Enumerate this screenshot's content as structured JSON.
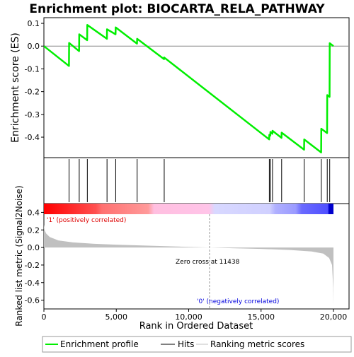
{
  "chart_data": {
    "type": "line",
    "title": "Enrichment plot: BIOCARTA_RELA_PATHWAY",
    "x_range": [
      0,
      20000
    ],
    "x_axis": {
      "label": "Rank in Ordered Dataset",
      "ticks": [
        0,
        5000,
        10000,
        15000,
        20000
      ],
      "tick_labels": [
        "0",
        "5,000",
        "10,000",
        "15,000",
        "20,000"
      ]
    },
    "enrichment_panel": {
      "ylabel": "Enrichment score (ES)",
      "ylim": [
        -0.49,
        0.125
      ],
      "yticks": [
        0.1,
        0.0,
        -0.1,
        -0.2,
        -0.3,
        -0.4
      ],
      "ytick_labels": [
        "0.1",
        "0.0",
        "-0.1",
        "-0.2",
        "-0.3",
        "-0.4"
      ],
      "zero_line": 0.0,
      "line_color": "#00ee00",
      "profile": [
        [
          0,
          0.0
        ],
        [
          1730,
          -0.087
        ],
        [
          1740,
          0.014
        ],
        [
          2430,
          -0.022
        ],
        [
          2440,
          0.052
        ],
        [
          2990,
          0.026
        ],
        [
          3000,
          0.093
        ],
        [
          4350,
          0.032
        ],
        [
          4360,
          0.074
        ],
        [
          4950,
          0.052
        ],
        [
          4960,
          0.082
        ],
        [
          6430,
          0.011
        ],
        [
          6440,
          0.032
        ],
        [
          8300,
          -0.057
        ],
        [
          8310,
          -0.05
        ],
        [
          15560,
          -0.41
        ],
        [
          15570,
          -0.39
        ],
        [
          15640,
          -0.393
        ],
        [
          15650,
          -0.377
        ],
        [
          15780,
          -0.385
        ],
        [
          15790,
          -0.372
        ],
        [
          16410,
          -0.403
        ],
        [
          16420,
          -0.38
        ],
        [
          17970,
          -0.455
        ],
        [
          17980,
          -0.41
        ],
        [
          19150,
          -0.467
        ],
        [
          19160,
          -0.363
        ],
        [
          19560,
          -0.382
        ],
        [
          19570,
          -0.215
        ],
        [
          19730,
          -0.223
        ],
        [
          19740,
          0.013
        ],
        [
          20000,
          0.0
        ]
      ]
    },
    "hits": [
      1740,
      2440,
      3000,
      4360,
      4960,
      6440,
      8310,
      15570,
      15650,
      15790,
      16420,
      17980,
      19160,
      19570,
      19740
    ],
    "rank_bar": {
      "stops": [
        "#ff0000",
        "#ff6a6a",
        "#ffaaaa",
        "#ffc4e8",
        "#d8d8ff",
        "#a8a8ff",
        "#7070ff",
        "#0000ee"
      ],
      "label_positive": "'1' (positively correlated)",
      "label_negative": "'0' (negatively correlated)",
      "positive_color": "#dd0000",
      "negative_color": "#0000dd"
    },
    "metric_panel": {
      "ylabel": "Ranked list metric (Signal2Noise)",
      "ylim": [
        -0.7,
        0.5
      ],
      "yticks": [
        0.4,
        0.2,
        0.0,
        -0.2,
        -0.4,
        -0.6
      ],
      "ytick_labels": [
        "0.4",
        "0.2",
        "0.0",
        "-0.2",
        "-0.4",
        "-0.6"
      ],
      "fill_color": "#c0c0c0",
      "zero_cross_text": "Zero cross at 11438",
      "zero_cross": 11438,
      "profile": [
        [
          0,
          0.26
        ],
        [
          50,
          0.2
        ],
        [
          150,
          0.16
        ],
        [
          400,
          0.12
        ],
        [
          1000,
          0.08
        ],
        [
          2000,
          0.058
        ],
        [
          3500,
          0.042
        ],
        [
          5000,
          0.032
        ],
        [
          7000,
          0.022
        ],
        [
          9000,
          0.012
        ],
        [
          11438,
          0.0
        ],
        [
          13000,
          -0.008
        ],
        [
          15000,
          -0.016
        ],
        [
          17000,
          -0.028
        ],
        [
          18500,
          -0.045
        ],
        [
          19300,
          -0.07
        ],
        [
          19700,
          -0.12
        ],
        [
          19900,
          -0.2
        ],
        [
          19980,
          -0.45
        ],
        [
          20000,
          -0.66
        ]
      ]
    },
    "legend": [
      {
        "label": "Enrichment profile",
        "color": "#00ee00"
      },
      {
        "label": "Hits",
        "color": "#000000"
      },
      {
        "label": "Ranking metric scores",
        "color": "#c0c0c0"
      }
    ]
  }
}
